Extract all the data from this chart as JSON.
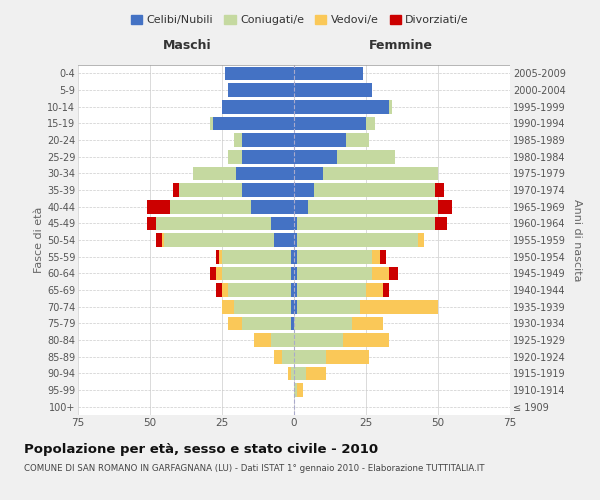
{
  "age_groups": [
    "100+",
    "95-99",
    "90-94",
    "85-89",
    "80-84",
    "75-79",
    "70-74",
    "65-69",
    "60-64",
    "55-59",
    "50-54",
    "45-49",
    "40-44",
    "35-39",
    "30-34",
    "25-29",
    "20-24",
    "15-19",
    "10-14",
    "5-9",
    "0-4"
  ],
  "birth_years": [
    "≤ 1909",
    "1910-1914",
    "1915-1919",
    "1920-1924",
    "1925-1929",
    "1930-1934",
    "1935-1939",
    "1940-1944",
    "1945-1949",
    "1950-1954",
    "1955-1959",
    "1960-1964",
    "1965-1969",
    "1970-1974",
    "1975-1979",
    "1980-1984",
    "1985-1989",
    "1990-1994",
    "1995-1999",
    "2000-2004",
    "2005-2009"
  ],
  "male": {
    "celibi": [
      0,
      0,
      0,
      0,
      0,
      1,
      1,
      1,
      1,
      1,
      7,
      8,
      15,
      18,
      20,
      18,
      18,
      28,
      25,
      23,
      24
    ],
    "coniugati": [
      0,
      0,
      1,
      4,
      8,
      17,
      20,
      22,
      24,
      24,
      38,
      40,
      28,
      22,
      15,
      5,
      3,
      1,
      0,
      0,
      0
    ],
    "vedovi": [
      0,
      0,
      1,
      3,
      6,
      5,
      4,
      2,
      2,
      1,
      1,
      0,
      0,
      0,
      0,
      0,
      0,
      0,
      0,
      0,
      0
    ],
    "divorziati": [
      0,
      0,
      0,
      0,
      0,
      0,
      0,
      2,
      2,
      1,
      2,
      3,
      8,
      2,
      0,
      0,
      0,
      0,
      0,
      0,
      0
    ]
  },
  "female": {
    "nubili": [
      0,
      0,
      0,
      0,
      0,
      0,
      1,
      1,
      1,
      1,
      1,
      1,
      5,
      7,
      10,
      15,
      18,
      25,
      33,
      27,
      24
    ],
    "coniugate": [
      0,
      1,
      4,
      11,
      17,
      20,
      22,
      24,
      26,
      26,
      42,
      48,
      45,
      42,
      40,
      20,
      8,
      3,
      1,
      0,
      0
    ],
    "vedove": [
      0,
      2,
      7,
      15,
      16,
      11,
      27,
      6,
      6,
      3,
      2,
      0,
      0,
      0,
      0,
      0,
      0,
      0,
      0,
      0,
      0
    ],
    "divorziate": [
      0,
      0,
      0,
      0,
      0,
      0,
      0,
      2,
      3,
      2,
      0,
      4,
      5,
      3,
      0,
      0,
      0,
      0,
      0,
      0,
      0
    ]
  },
  "colors": {
    "celibi": "#4472C4",
    "coniugati": "#C5D9A0",
    "vedovi": "#FAC858",
    "divorziati": "#CC0000"
  },
  "xlim": 75,
  "title": "Popolazione per età, sesso e stato civile - 2010",
  "subtitle": "COMUNE DI SAN ROMANO IN GARFAGNANA (LU) - Dati ISTAT 1° gennaio 2010 - Elaborazione TUTTITALIA.IT",
  "legend_labels": [
    "Celibi/Nubili",
    "Coniugati/e",
    "Vedovi/e",
    "Divorziati/e"
  ],
  "ylabel_left": "Fasce di età",
  "ylabel_right": "Anni di nascita",
  "xlabel_left": "Maschi",
  "xlabel_right": "Femmine",
  "bg_color": "#f0f0f0",
  "bar_bg_color": "#ffffff"
}
